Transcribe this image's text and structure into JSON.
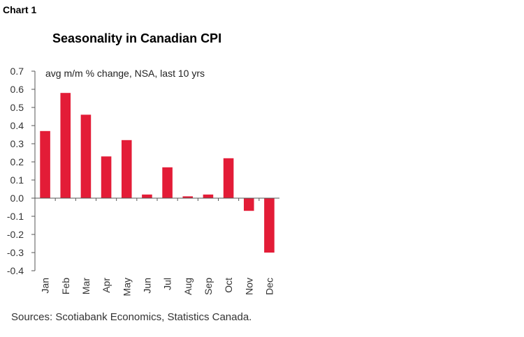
{
  "header": {
    "chart_label": "Chart 1",
    "title": "Seasonality in Canadian CPI",
    "sources": "Sources: Scotiabank Economics, Statistics Canada."
  },
  "chart_data": {
    "type": "bar",
    "title": "Seasonality in Canadian CPI",
    "subtitle": "avg m/m % change, NSA, last 10 yrs",
    "categories": [
      "Jan",
      "Feb",
      "Mar",
      "Apr",
      "May",
      "Jun",
      "Jul",
      "Aug",
      "Sep",
      "Oct",
      "Nov",
      "Dec"
    ],
    "values": [
      0.37,
      0.58,
      0.46,
      0.23,
      0.32,
      0.02,
      0.17,
      0.01,
      0.02,
      0.22,
      -0.07,
      -0.3
    ],
    "ylim": [
      -0.4,
      0.7
    ],
    "yticks": [
      "0.7",
      "0.6",
      "0.5",
      "0.4",
      "0.3",
      "0.2",
      "0.1",
      "0.0",
      "-0.1",
      "-0.2",
      "-0.3",
      "-0.4"
    ],
    "grid": false,
    "legend": "none",
    "bar_color": "#e31c37"
  }
}
